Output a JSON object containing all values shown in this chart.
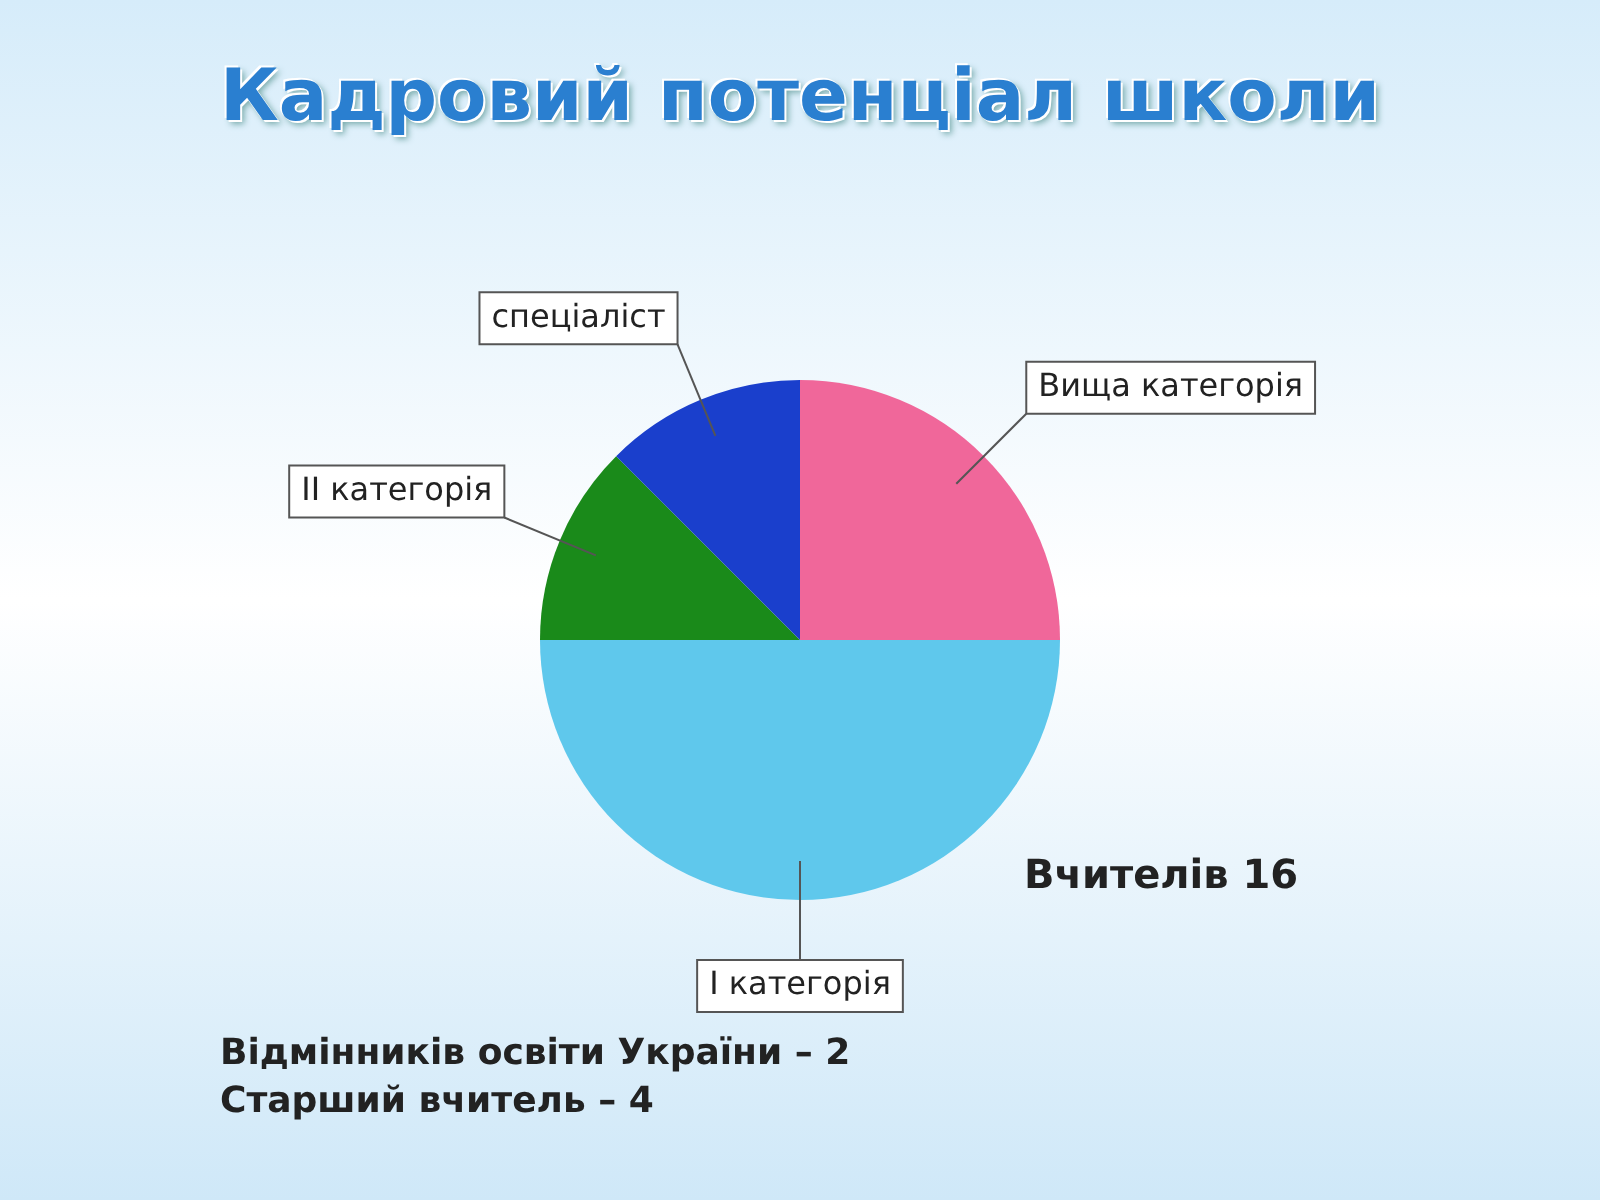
{
  "chart_data": {
    "type": "pie",
    "title": "Кадровий потенціал школи",
    "categories": [
      "Вища категорія",
      "I категорія",
      "II категорія",
      "спеціаліст"
    ],
    "values": [
      25,
      50,
      12.5,
      12.5
    ],
    "colors": [
      "#f0679a",
      "#5fc8ec",
      "#1a8a1a",
      "#1a3fcc"
    ],
    "legend": false,
    "annotations": [
      "Вчителів 16",
      "Відмінників освіти України – 2",
      "Старший вчитель – 4"
    ]
  }
}
